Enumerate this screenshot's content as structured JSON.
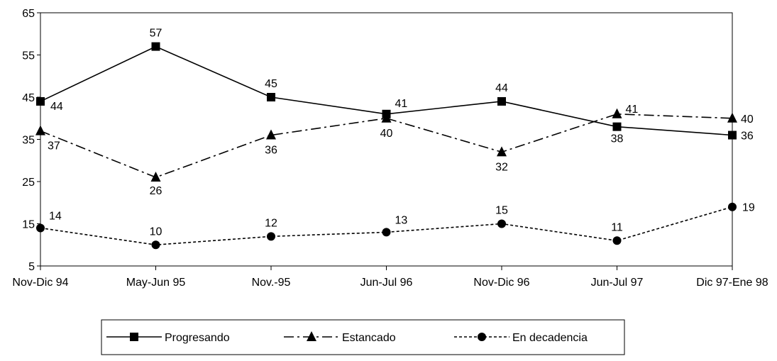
{
  "chart_data": {
    "type": "line",
    "title": "",
    "xlabel": "",
    "ylabel": "",
    "categories": [
      "Nov-Dic 94",
      "May-Jun 95",
      "Nov.-95",
      "Jun-Jul 96",
      "Nov-Dic 96",
      "Jun-Jul 97",
      "Dic 97-Ene 98"
    ],
    "ylim": [
      5,
      65
    ],
    "yticks": [
      "5",
      "15",
      "25",
      "35",
      "45",
      "55",
      "65"
    ],
    "grid": false,
    "legend_position": "bottom",
    "series": [
      {
        "name": "Progresando",
        "values": [
          44,
          57,
          45,
          41,
          44,
          38,
          36
        ],
        "labels": [
          "44",
          "57",
          "45",
          "41",
          "44",
          "38",
          "36"
        ],
        "marker": "square",
        "line_style": "solid",
        "color": "#000000"
      },
      {
        "name": "Estancado",
        "values": [
          37,
          26,
          36,
          40,
          32,
          41,
          40
        ],
        "labels": [
          "37",
          "26",
          "36",
          "40",
          "32",
          "41",
          "40"
        ],
        "marker": "triangle",
        "line_style": "dash-dot",
        "color": "#000000"
      },
      {
        "name": "En decadencia",
        "values": [
          14,
          10,
          12,
          13,
          15,
          11,
          19
        ],
        "labels": [
          "14",
          "10",
          "12",
          "13",
          "15",
          "11",
          "19"
        ],
        "marker": "circle",
        "line_style": "dotted",
        "color": "#000000"
      }
    ]
  }
}
